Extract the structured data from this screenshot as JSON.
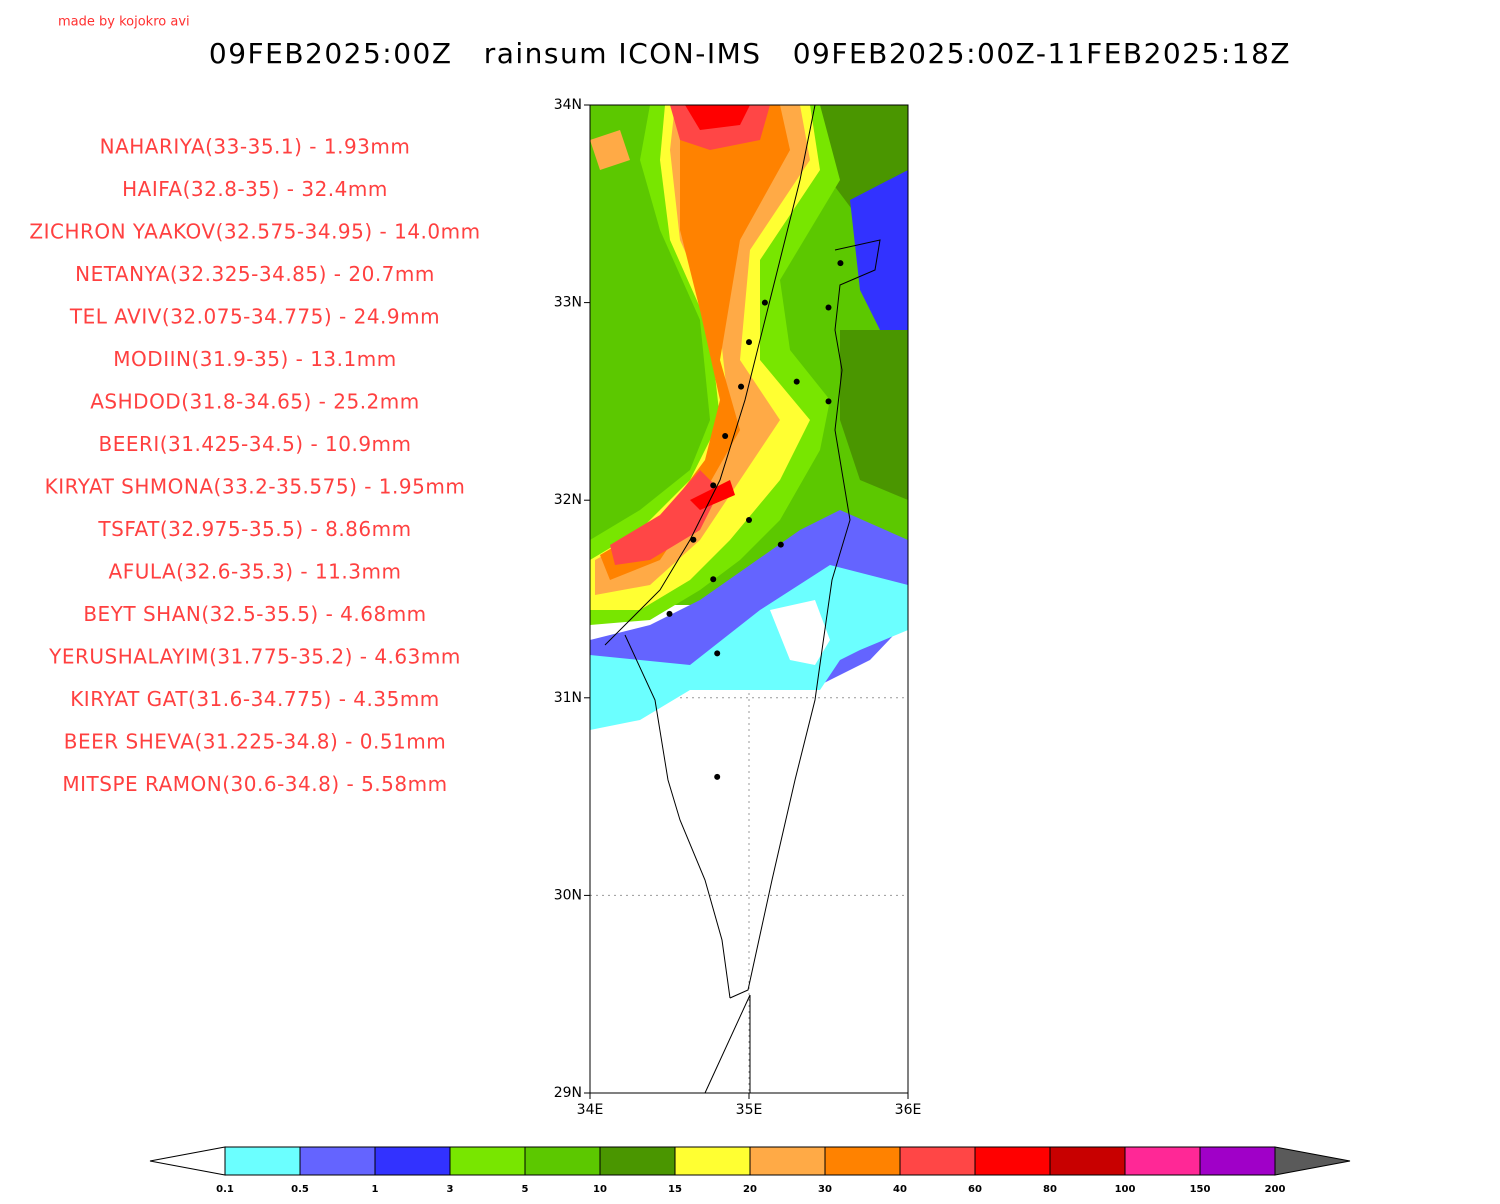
{
  "header": {
    "credit": "made by kojokro avi",
    "title": "09FEB2025:00Z   rainsum ICON-IMS   09FEB2025:00Z-11FEB2025:18Z"
  },
  "map": {
    "xlim": [
      34,
      36
    ],
    "ylim": [
      29,
      34
    ],
    "xticks": [
      {
        "value": 34,
        "label": "34E"
      },
      {
        "value": 35,
        "label": "35E"
      },
      {
        "value": 36,
        "label": "36E"
      }
    ],
    "yticks": [
      {
        "value": 29,
        "label": "29N"
      },
      {
        "value": 30,
        "label": "30N"
      },
      {
        "value": 31,
        "label": "31N"
      },
      {
        "value": 32,
        "label": "32N"
      },
      {
        "value": 33,
        "label": "33N"
      },
      {
        "value": 34,
        "label": "34N"
      }
    ],
    "stations": [
      {
        "label": "NAHARIYA(33-35.1) - 1.93mm",
        "lat": 33,
        "lon": 35.1
      },
      {
        "label": "HAIFA(32.8-35) - 32.4mm",
        "lat": 32.8,
        "lon": 35
      },
      {
        "label": "ZICHRON YAAKOV(32.575-34.95) - 14.0mm",
        "lat": 32.575,
        "lon": 34.95
      },
      {
        "label": "NETANYA(32.325-34.85) - 20.7mm",
        "lat": 32.325,
        "lon": 34.85
      },
      {
        "label": "TEL AVIV(32.075-34.775) - 24.9mm",
        "lat": 32.075,
        "lon": 34.775
      },
      {
        "label": "MODIIN(31.9-35) - 13.1mm",
        "lat": 31.9,
        "lon": 35
      },
      {
        "label": "ASHDOD(31.8-34.65) - 25.2mm",
        "lat": 31.8,
        "lon": 34.65
      },
      {
        "label": "BEERI(31.425-34.5) - 10.9mm",
        "lat": 31.425,
        "lon": 34.5
      },
      {
        "label": "KIRYAT SHMONA(33.2-35.575) - 1.95mm",
        "lat": 33.2,
        "lon": 35.575
      },
      {
        "label": "TSFAT(32.975-35.5) - 8.86mm",
        "lat": 32.975,
        "lon": 35.5
      },
      {
        "label": "AFULA(32.6-35.3) - 11.3mm",
        "lat": 32.6,
        "lon": 35.3
      },
      {
        "label": "BEYT SHAN(32.5-35.5) - 4.68mm",
        "lat": 32.5,
        "lon": 35.5
      },
      {
        "label": "YERUSHALAYIM(31.775-35.2) - 4.63mm",
        "lat": 31.775,
        "lon": 35.2
      },
      {
        "label": "KIRYAT GAT(31.6-34.775) - 4.35mm",
        "lat": 31.6,
        "lon": 34.775
      },
      {
        "label": "BEER SHEVA(31.225-34.8) - 0.51mm",
        "lat": 31.225,
        "lon": 34.8
      },
      {
        "label": "MITSPE RAMON(30.6-34.8) - 5.58mm",
        "lat": 30.6,
        "lon": 34.8
      }
    ]
  },
  "colorbar": {
    "levels": [
      0.1,
      0.5,
      1,
      3,
      5,
      10,
      15,
      20,
      30,
      40,
      60,
      80,
      100,
      150,
      200
    ],
    "colors": [
      "#6bffff",
      "#6464ff",
      "#3232ff",
      "#78e600",
      "#5cc800",
      "#4a9600",
      "#ffff32",
      "#ffaa46",
      "#ff8200",
      "#ff4646",
      "#ff0000",
      "#c80000",
      "#ff2896",
      "#a000c8"
    ],
    "under_color": "#ffffff",
    "over_color": "#5a5a5a"
  }
}
